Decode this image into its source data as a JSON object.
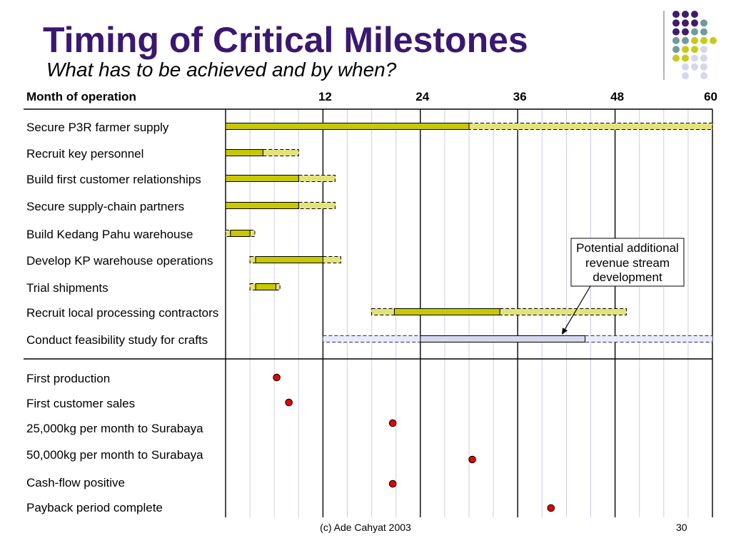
{
  "slide": {
    "title": "Timing of Critical Milestones",
    "subtitle": "What has to be achieved and by when?",
    "footer": "(c) Ade Cahyat 2003",
    "page_number": "30"
  },
  "colors": {
    "title": "#3a1870",
    "grid_major": "#000000",
    "grid_minor": "#cdcde8",
    "milestone": "#e60000",
    "decor_purple": "#3f1d6b",
    "decor_teal": "#6f9b9e",
    "decor_yellow": "#c9c91a",
    "decor_lavender": "#d6d6ee",
    "decor_rule": "#9a9a9a"
  },
  "chart_data": {
    "type": "bar",
    "xlabel": "Month of operation",
    "xlim": [
      0,
      60
    ],
    "xticks": [
      12,
      24,
      36,
      48,
      60
    ],
    "grid": true,
    "grid_step": 3,
    "major_grid_step": 12,
    "tasks": [
      {
        "label": "Secure P3R farmer supply",
        "color": "#c8c800",
        "tentative_color": "#e3e37c",
        "dash_color": "#000000",
        "segments": [
          {
            "start": 0,
            "end": 30,
            "dashed": false
          },
          {
            "start": 30,
            "end": 60,
            "dashed": true
          }
        ]
      },
      {
        "label": "Recruit key personnel",
        "color": "#c8c800",
        "tentative_color": "#e3e37c",
        "dash_color": "#000000",
        "segments": [
          {
            "start": 0,
            "end": 4.6,
            "dashed": false
          },
          {
            "start": 4.6,
            "end": 9,
            "dashed": true
          }
        ]
      },
      {
        "label": "Build first customer relationships",
        "color": "#c8c800",
        "tentative_color": "#e3e37c",
        "dash_color": "#000000",
        "segments": [
          {
            "start": 0,
            "end": 9,
            "dashed": false
          },
          {
            "start": 9,
            "end": 13.5,
            "dashed": true
          }
        ]
      },
      {
        "label": "Secure supply-chain partners",
        "color": "#c8c800",
        "tentative_color": "#e3e37c",
        "dash_color": "#000000",
        "segments": [
          {
            "start": 0,
            "end": 9,
            "dashed": false
          },
          {
            "start": 9,
            "end": 13.5,
            "dashed": true
          }
        ]
      },
      {
        "label": "Build Kedang Pahu warehouse",
        "color": "#c8c800",
        "tentative_color": "#e3e37c",
        "dash_color": "#000000",
        "segments": [
          {
            "start": 0,
            "end": 0.6,
            "dashed": true
          },
          {
            "start": 0.6,
            "end": 3,
            "dashed": false
          },
          {
            "start": 3,
            "end": 3.6,
            "dashed": true
          }
        ]
      },
      {
        "label": "Develop KP warehouse operations",
        "color": "#c8c800",
        "tentative_color": "#e3e37c",
        "dash_color": "#000000",
        "segments": [
          {
            "start": 3,
            "end": 3.7,
            "dashed": true
          },
          {
            "start": 3.7,
            "end": 12,
            "dashed": false
          },
          {
            "start": 12,
            "end": 14.2,
            "dashed": true
          }
        ]
      },
      {
        "label": "Trial shipments",
        "color": "#c8c800",
        "tentative_color": "#e3e37c",
        "dash_color": "#000000",
        "segments": [
          {
            "start": 3,
            "end": 3.7,
            "dashed": true
          },
          {
            "start": 3.7,
            "end": 6.2,
            "dashed": false
          },
          {
            "start": 6.2,
            "end": 6.7,
            "dashed": true
          }
        ]
      },
      {
        "label": "Recruit local processing contractors",
        "color": "#c8c800",
        "tentative_color": "#e3e37c",
        "dash_color": "#000000",
        "segments": [
          {
            "start": 18,
            "end": 20.8,
            "dashed": true
          },
          {
            "start": 20.8,
            "end": 33.8,
            "dashed": false
          },
          {
            "start": 33.8,
            "end": 49.4,
            "dashed": true
          }
        ]
      },
      {
        "label": "Conduct feasibility study for crafts",
        "color": "#d6d6f0",
        "tentative_color": "#eaeaf8",
        "dash_color": "#2b2b7a",
        "segments": [
          {
            "start": 12,
            "end": 24,
            "dashed": true
          },
          {
            "start": 24,
            "end": 44.3,
            "dashed": false
          },
          {
            "start": 44.3,
            "end": 60,
            "dashed": true
          }
        ]
      }
    ],
    "milestones": [
      {
        "label": "First production",
        "month": 6.3
      },
      {
        "label": "First customer sales",
        "month": 7.8
      },
      {
        "label": "25,000kg per month to Surabaya",
        "month": 20.6
      },
      {
        "label": "50,000kg per month to Surabaya",
        "month": 30.4
      },
      {
        "label": "Cash-flow positive",
        "month": 20.6
      },
      {
        "label": "Payback period complete",
        "month": 40.1
      }
    ],
    "annotation": [
      "Potential additional",
      "revenue stream",
      "development"
    ]
  }
}
